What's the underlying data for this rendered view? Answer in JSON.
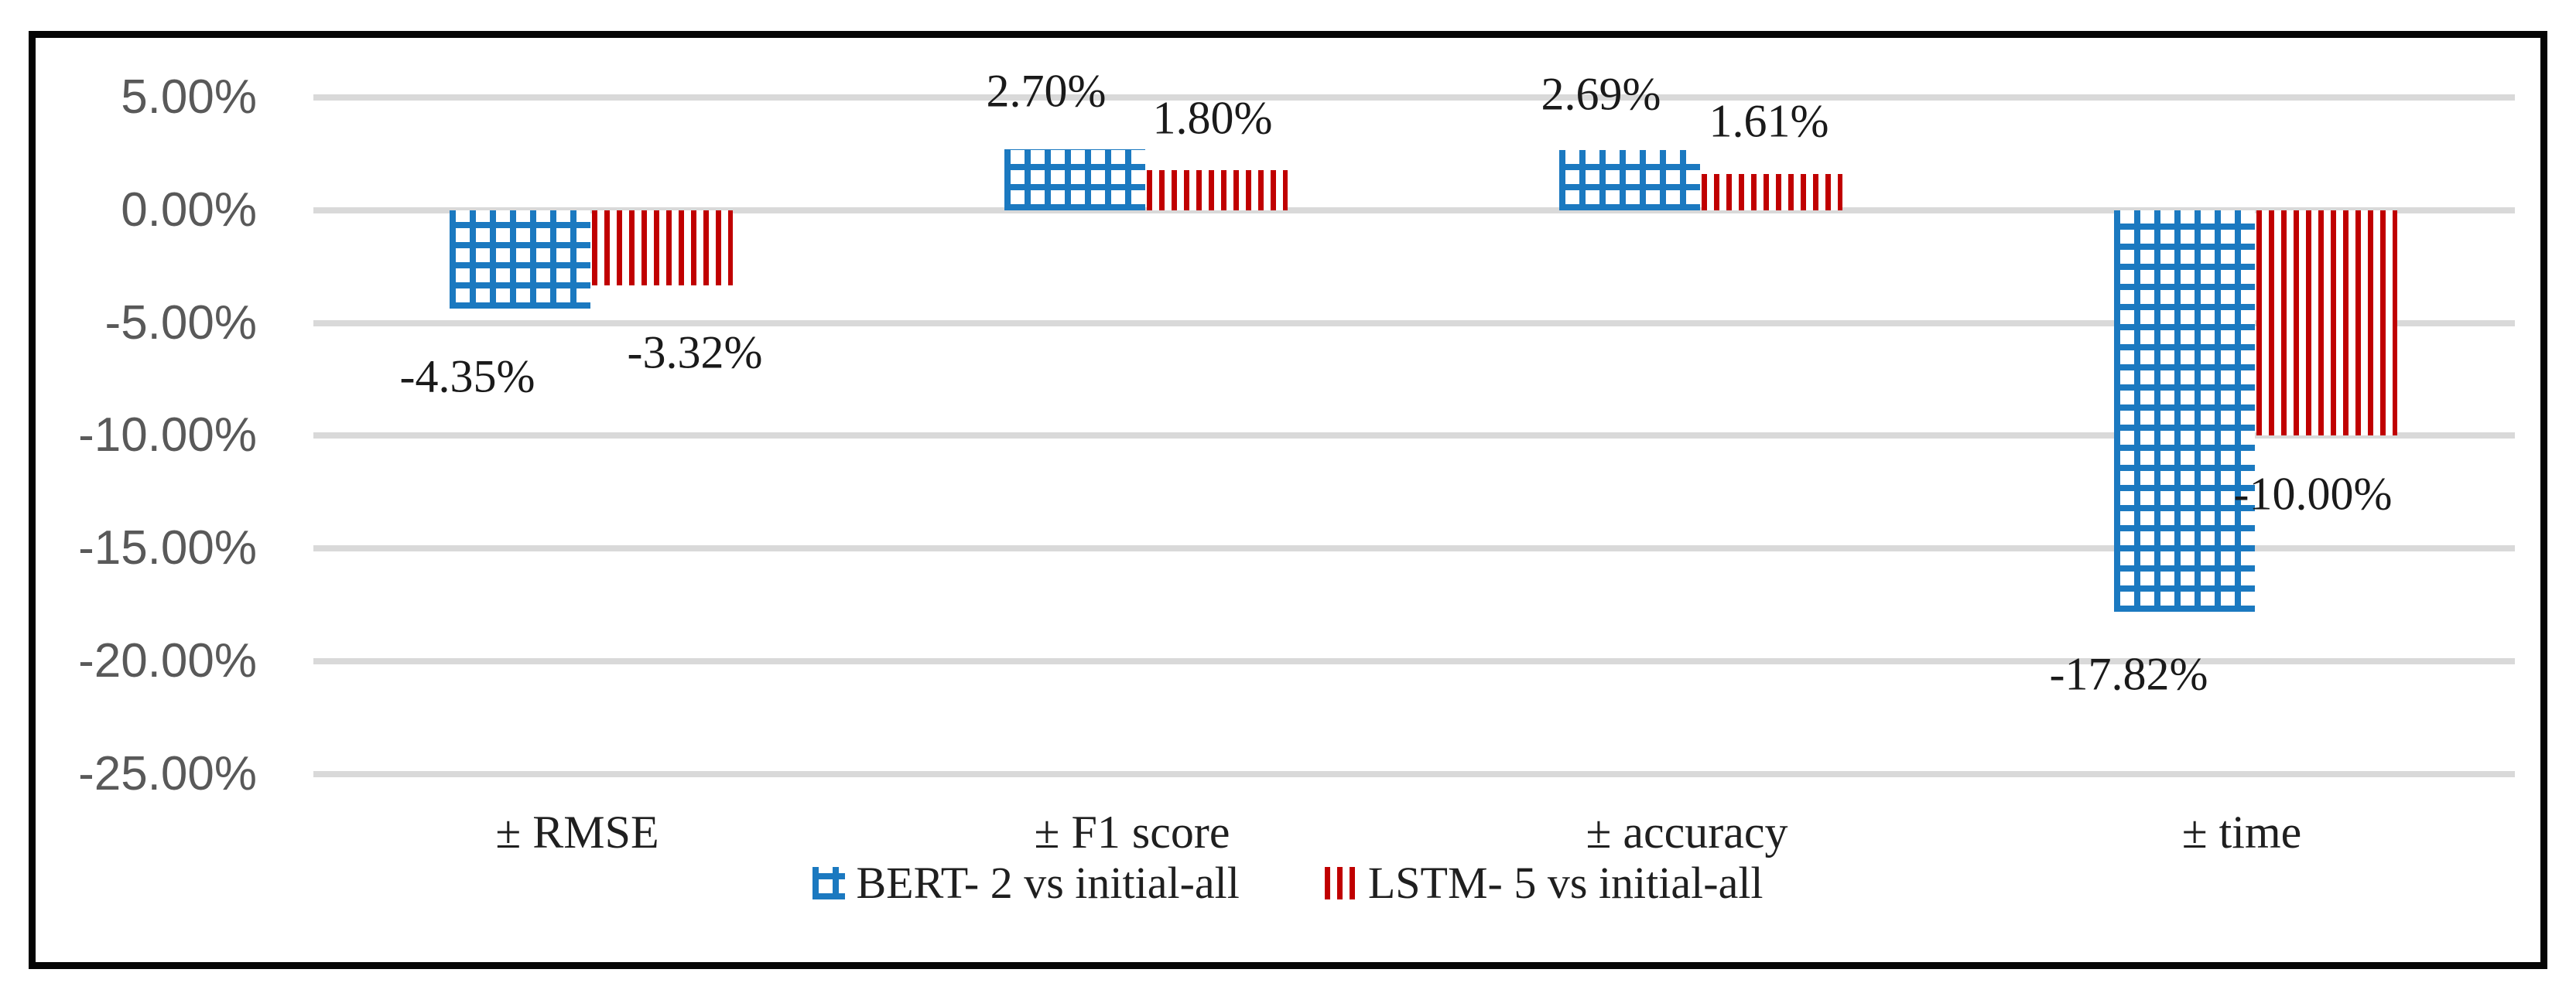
{
  "chart_data": {
    "type": "bar",
    "title": "",
    "xlabel": "",
    "ylabel": "",
    "categories": [
      "± RMSE",
      "± F1 score",
      "± accuracy",
      "± time"
    ],
    "series": [
      {
        "name": "BERT- 2 vs initial-all",
        "color": "#1b79c0",
        "pattern": "grid-hatch",
        "values": [
          -4.35,
          2.7,
          2.69,
          -17.82
        ],
        "data_labels": [
          "-4.35%",
          "2.70%",
          "2.69%",
          "-17.82%"
        ]
      },
      {
        "name": "LSTM- 5 vs initial-all",
        "color": "#c00000",
        "pattern": "vertical-stripes",
        "values": [
          -3.32,
          1.8,
          1.61,
          -10.0
        ],
        "data_labels": [
          "-3.32%",
          "1.80%",
          "1.61%",
          "-10.00%"
        ]
      }
    ],
    "ylim": [
      -25,
      5
    ],
    "ytick_values": [
      5,
      0,
      -5,
      -10,
      -15,
      -20,
      -25
    ],
    "ytick_labels": [
      "5.00%",
      "0.00%",
      "-5.00%",
      "-10.00%",
      "-15.00%",
      "-20.00%",
      "-25.00%"
    ],
    "grid": true,
    "legend_position": "bottom"
  },
  "colors": {
    "background": "#ffffff",
    "frame_border": "#050505",
    "gridline": "#d9d9d9",
    "axis_text": "#595959",
    "label_text": "#1a1a1a",
    "series_blue": "#1b79c0",
    "series_red": "#c00000"
  }
}
